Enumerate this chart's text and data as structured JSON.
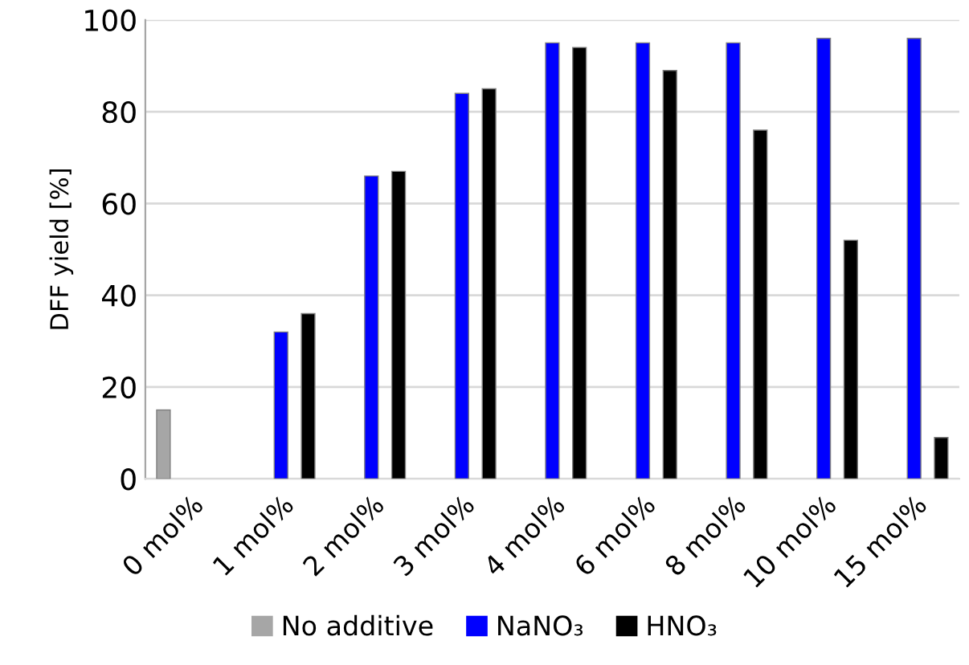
{
  "chart_data": {
    "type": "bar",
    "ylabel": "DFF yield [%]",
    "categories": [
      "0 mol%",
      "1 mol%",
      "2 mol%",
      "3 mol%",
      "4 mol%",
      "6 mol%",
      "8 mol%",
      "10 mol%",
      "15 mol%"
    ],
    "series": [
      {
        "name": "No additive",
        "color": "#a6a6a6",
        "values": [
          15,
          null,
          null,
          null,
          null,
          null,
          null,
          null,
          null
        ]
      },
      {
        "name": "NaNO₃",
        "color": "#0000ff",
        "values": [
          null,
          32,
          66,
          84,
          95,
          95,
          95,
          96,
          96
        ]
      },
      {
        "name": "HNO₃",
        "color": "#000000",
        "values": [
          null,
          36,
          67,
          85,
          94,
          89,
          76,
          52,
          9
        ]
      }
    ],
    "ylim": [
      0,
      100
    ],
    "yticks": [
      0,
      20,
      40,
      60,
      80,
      100
    ],
    "grid": "y",
    "legend": "bottom"
  }
}
